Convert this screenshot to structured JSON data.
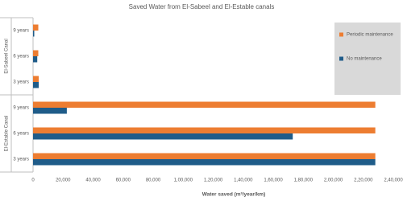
{
  "chart_data": {
    "type": "hbar",
    "title": "Saved Water from El-Sabeel and El-Estable canals",
    "x_label": "Water saved (m³/year/km)",
    "category_groups": [
      {
        "name": "El-Sabeel Canal",
        "categories": [
          "9 years",
          "6 years",
          "3 years"
        ]
      },
      {
        "name": "El-Estable Canal",
        "categories": [
          "9 years",
          "6 years",
          "3 years"
        ]
      }
    ],
    "series": [
      {
        "name": "Periodic maintenance",
        "color": "#ed7d31",
        "values": [
          3500,
          3500,
          3800,
          228000,
          228000,
          228000
        ]
      },
      {
        "name": "No maintenance",
        "color": "#1f5c89",
        "values": [
          800,
          2800,
          3800,
          22500,
          173000,
          228000
        ]
      }
    ],
    "xlim": [
      0,
      240000
    ],
    "xticks": [
      0,
      {
        "value": 20000,
        "label": "20,000"
      },
      {
        "value": 40000,
        "label": "40,000"
      },
      {
        "value": 60000,
        "label": "60,000"
      },
      {
        "value": 80000,
        "label": "80,000"
      },
      {
        "value": 100000,
        "label": "1,00,000"
      },
      {
        "value": 120000,
        "label": "1,20,000"
      },
      {
        "value": 140000,
        "label": "1,40,000"
      },
      {
        "value": 160000,
        "label": "1,60,000"
      },
      {
        "value": 180000,
        "label": "1,80,000"
      },
      {
        "value": 200000,
        "label": "2,00,000"
      },
      {
        "value": 220000,
        "label": "2,20,000"
      },
      {
        "value": 240000,
        "label": "2,40,000"
      }
    ],
    "grid": false,
    "legend": "right"
  }
}
